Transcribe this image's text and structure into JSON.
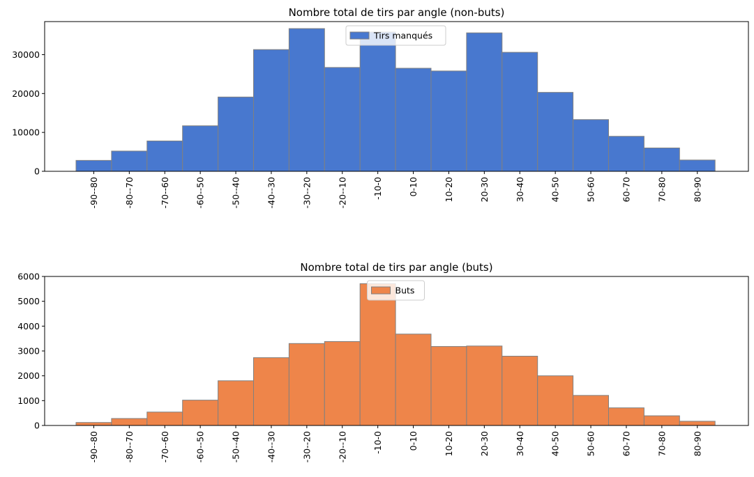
{
  "chart_data": [
    {
      "type": "bar",
      "title": "Nombre total de tirs par angle (non-buts)",
      "xlabel": "",
      "ylabel": "",
      "categories": [
        "-90--80",
        "-80--70",
        "-70--60",
        "-60--50",
        "-50--40",
        "-40--30",
        "-30--20",
        "-20--10",
        "-10-0",
        "0-10",
        "10-20",
        "20-30",
        "30-40",
        "40-50",
        "50-60",
        "60-70",
        "70-80",
        "80-90"
      ],
      "series": [
        {
          "name": "Tirs manqués",
          "values": [
            2800,
            5200,
            7800,
            11700,
            19100,
            31300,
            36700,
            26700,
            35800,
            26500,
            25800,
            35600,
            30600,
            20300,
            13300,
            9000,
            6000,
            2900
          ]
        }
      ],
      "ylim": [
        0,
        38500
      ],
      "yticks": [
        0,
        10000,
        20000,
        30000
      ],
      "color": "#4878cf",
      "edge_color": "#808080",
      "legend_position": "upper center",
      "grid": false
    },
    {
      "type": "bar",
      "title": "Nombre total de tirs par angle (buts)",
      "xlabel": "",
      "ylabel": "",
      "categories": [
        "-90--80",
        "-80--70",
        "-70--60",
        "-60--50",
        "-50--40",
        "-40--30",
        "-30--20",
        "-20--10",
        "-10-0",
        "0-10",
        "10-20",
        "20-30",
        "30-40",
        "40-50",
        "50-60",
        "60-70",
        "70-80",
        "80-90"
      ],
      "series": [
        {
          "name": "Buts",
          "values": [
            120,
            280,
            540,
            1020,
            1800,
            2730,
            3300,
            3380,
            5710,
            3680,
            3180,
            3200,
            2790,
            2000,
            1210,
            710,
            390,
            170
          ]
        }
      ],
      "ylim": [
        0,
        6000
      ],
      "yticks": [
        0,
        1000,
        2000,
        3000,
        4000,
        5000,
        6000
      ],
      "color": "#ee854a",
      "edge_color": "#808080",
      "legend_position": "upper center",
      "grid": false
    }
  ]
}
